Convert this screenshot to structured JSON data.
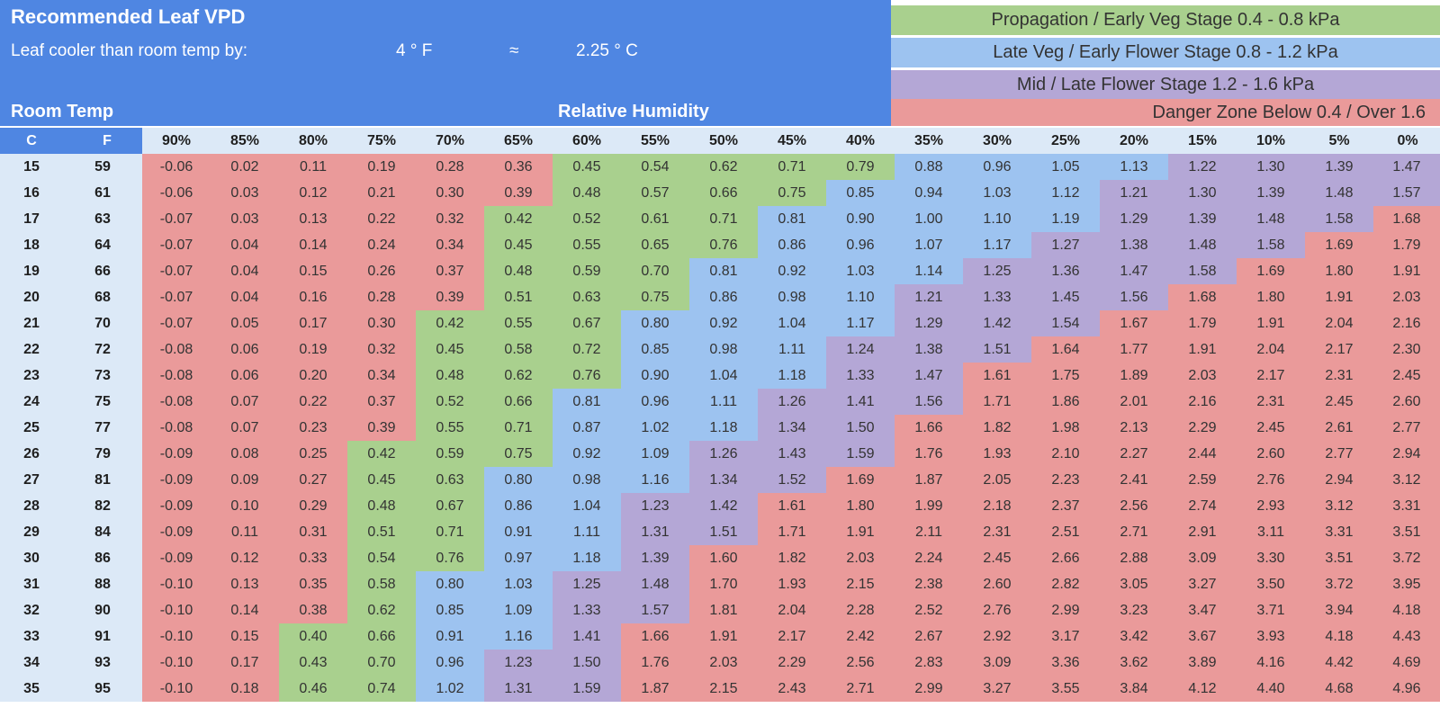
{
  "title": "Recommended Leaf VPD",
  "leaf_cooler": {
    "label": "Leaf cooler than room temp by:",
    "fahrenheit": "4 ° F",
    "approx": "≈",
    "celsius": "2.25 ° C"
  },
  "room_temp_label": "Room Temp",
  "rh_label": "Relative Humidity",
  "legend": [
    {
      "text": "Propagation / Early Veg Stage 0.4 - 0.8 kPa",
      "color": "#a9d08e"
    },
    {
      "text": "Late Veg / Early Flower Stage 0.8 - 1.2 kPa",
      "color": "#9dc3f0"
    },
    {
      "text": "Mid / Late Flower Stage 1.2 - 1.6 kPa",
      "color": "#b4a7d6"
    },
    {
      "text": "Danger Zone   Below 0.4 / Over 1.6",
      "color": "#ea9a9a"
    }
  ],
  "colors": {
    "header_blue": "#4f86e2",
    "header_light": "#dce9f7",
    "danger": "#ea9a9a",
    "green": "#a9d08e",
    "blue": "#9dc3f0",
    "purple": "#b4a7d6"
  },
  "chart_data": {
    "type": "table",
    "title": "Recommended Leaf VPD",
    "xlabel": "Relative Humidity",
    "ylabel": "Room Temp",
    "temp_headers": [
      "C",
      "F"
    ],
    "columns": [
      "90%",
      "85%",
      "80%",
      "75%",
      "70%",
      "65%",
      "60%",
      "55%",
      "50%",
      "45%",
      "40%",
      "35%",
      "30%",
      "25%",
      "20%",
      "15%",
      "10%",
      "5%",
      "0%"
    ],
    "rows": [
      {
        "c": "15",
        "f": "59",
        "values": [
          "-0.06",
          "0.02",
          "0.11",
          "0.19",
          "0.28",
          "0.36",
          "0.45",
          "0.54",
          "0.62",
          "0.71",
          "0.79",
          "0.88",
          "0.96",
          "1.05",
          "1.13",
          "1.22",
          "1.30",
          "1.39",
          "1.47"
        ]
      },
      {
        "c": "16",
        "f": "61",
        "values": [
          "-0.06",
          "0.03",
          "0.12",
          "0.21",
          "0.30",
          "0.39",
          "0.48",
          "0.57",
          "0.66",
          "0.75",
          "0.85",
          "0.94",
          "1.03",
          "1.12",
          "1.21",
          "1.30",
          "1.39",
          "1.48",
          "1.57"
        ]
      },
      {
        "c": "17",
        "f": "63",
        "values": [
          "-0.07",
          "0.03",
          "0.13",
          "0.22",
          "0.32",
          "0.42",
          "0.52",
          "0.61",
          "0.71",
          "0.81",
          "0.90",
          "1.00",
          "1.10",
          "1.19",
          "1.29",
          "1.39",
          "1.48",
          "1.58",
          "1.68"
        ]
      },
      {
        "c": "18",
        "f": "64",
        "values": [
          "-0.07",
          "0.04",
          "0.14",
          "0.24",
          "0.34",
          "0.45",
          "0.55",
          "0.65",
          "0.76",
          "0.86",
          "0.96",
          "1.07",
          "1.17",
          "1.27",
          "1.38",
          "1.48",
          "1.58",
          "1.69",
          "1.79"
        ]
      },
      {
        "c": "19",
        "f": "66",
        "values": [
          "-0.07",
          "0.04",
          "0.15",
          "0.26",
          "0.37",
          "0.48",
          "0.59",
          "0.70",
          "0.81",
          "0.92",
          "1.03",
          "1.14",
          "1.25",
          "1.36",
          "1.47",
          "1.58",
          "1.69",
          "1.80",
          "1.91"
        ]
      },
      {
        "c": "20",
        "f": "68",
        "values": [
          "-0.07",
          "0.04",
          "0.16",
          "0.28",
          "0.39",
          "0.51",
          "0.63",
          "0.75",
          "0.86",
          "0.98",
          "1.10",
          "1.21",
          "1.33",
          "1.45",
          "1.56",
          "1.68",
          "1.80",
          "1.91",
          "2.03"
        ]
      },
      {
        "c": "21",
        "f": "70",
        "values": [
          "-0.07",
          "0.05",
          "0.17",
          "0.30",
          "0.42",
          "0.55",
          "0.67",
          "0.80",
          "0.92",
          "1.04",
          "1.17",
          "1.29",
          "1.42",
          "1.54",
          "1.67",
          "1.79",
          "1.91",
          "2.04",
          "2.16"
        ]
      },
      {
        "c": "22",
        "f": "72",
        "values": [
          "-0.08",
          "0.06",
          "0.19",
          "0.32",
          "0.45",
          "0.58",
          "0.72",
          "0.85",
          "0.98",
          "1.11",
          "1.24",
          "1.38",
          "1.51",
          "1.64",
          "1.77",
          "1.91",
          "2.04",
          "2.17",
          "2.30"
        ]
      },
      {
        "c": "23",
        "f": "73",
        "values": [
          "-0.08",
          "0.06",
          "0.20",
          "0.34",
          "0.48",
          "0.62",
          "0.76",
          "0.90",
          "1.04",
          "1.18",
          "1.33",
          "1.47",
          "1.61",
          "1.75",
          "1.89",
          "2.03",
          "2.17",
          "2.31",
          "2.45"
        ]
      },
      {
        "c": "24",
        "f": "75",
        "values": [
          "-0.08",
          "0.07",
          "0.22",
          "0.37",
          "0.52",
          "0.66",
          "0.81",
          "0.96",
          "1.11",
          "1.26",
          "1.41",
          "1.56",
          "1.71",
          "1.86",
          "2.01",
          "2.16",
          "2.31",
          "2.45",
          "2.60"
        ]
      },
      {
        "c": "25",
        "f": "77",
        "values": [
          "-0.08",
          "0.07",
          "0.23",
          "0.39",
          "0.55",
          "0.71",
          "0.87",
          "1.02",
          "1.18",
          "1.34",
          "1.50",
          "1.66",
          "1.82",
          "1.98",
          "2.13",
          "2.29",
          "2.45",
          "2.61",
          "2.77"
        ]
      },
      {
        "c": "26",
        "f": "79",
        "values": [
          "-0.09",
          "0.08",
          "0.25",
          "0.42",
          "0.59",
          "0.75",
          "0.92",
          "1.09",
          "1.26",
          "1.43",
          "1.59",
          "1.76",
          "1.93",
          "2.10",
          "2.27",
          "2.44",
          "2.60",
          "2.77",
          "2.94"
        ]
      },
      {
        "c": "27",
        "f": "81",
        "values": [
          "-0.09",
          "0.09",
          "0.27",
          "0.45",
          "0.63",
          "0.80",
          "0.98",
          "1.16",
          "1.34",
          "1.52",
          "1.69",
          "1.87",
          "2.05",
          "2.23",
          "2.41",
          "2.59",
          "2.76",
          "2.94",
          "3.12"
        ]
      },
      {
        "c": "28",
        "f": "82",
        "values": [
          "-0.09",
          "0.10",
          "0.29",
          "0.48",
          "0.67",
          "0.86",
          "1.04",
          "1.23",
          "1.42",
          "1.61",
          "1.80",
          "1.99",
          "2.18",
          "2.37",
          "2.56",
          "2.74",
          "2.93",
          "3.12",
          "3.31"
        ]
      },
      {
        "c": "29",
        "f": "84",
        "values": [
          "-0.09",
          "0.11",
          "0.31",
          "0.51",
          "0.71",
          "0.91",
          "1.11",
          "1.31",
          "1.51",
          "1.71",
          "1.91",
          "2.11",
          "2.31",
          "2.51",
          "2.71",
          "2.91",
          "3.11",
          "3.31",
          "3.51"
        ]
      },
      {
        "c": "30",
        "f": "86",
        "values": [
          "-0.09",
          "0.12",
          "0.33",
          "0.54",
          "0.76",
          "0.97",
          "1.18",
          "1.39",
          "1.60",
          "1.82",
          "2.03",
          "2.24",
          "2.45",
          "2.66",
          "2.88",
          "3.09",
          "3.30",
          "3.51",
          "3.72"
        ]
      },
      {
        "c": "31",
        "f": "88",
        "values": [
          "-0.10",
          "0.13",
          "0.35",
          "0.58",
          "0.80",
          "1.03",
          "1.25",
          "1.48",
          "1.70",
          "1.93",
          "2.15",
          "2.38",
          "2.60",
          "2.82",
          "3.05",
          "3.27",
          "3.50",
          "3.72",
          "3.95"
        ]
      },
      {
        "c": "32",
        "f": "90",
        "values": [
          "-0.10",
          "0.14",
          "0.38",
          "0.62",
          "0.85",
          "1.09",
          "1.33",
          "1.57",
          "1.81",
          "2.04",
          "2.28",
          "2.52",
          "2.76",
          "2.99",
          "3.23",
          "3.47",
          "3.71",
          "3.94",
          "4.18"
        ]
      },
      {
        "c": "33",
        "f": "91",
        "values": [
          "-0.10",
          "0.15",
          "0.40",
          "0.66",
          "0.91",
          "1.16",
          "1.41",
          "1.66",
          "1.91",
          "2.17",
          "2.42",
          "2.67",
          "2.92",
          "3.17",
          "3.42",
          "3.67",
          "3.93",
          "4.18",
          "4.43"
        ]
      },
      {
        "c": "34",
        "f": "93",
        "values": [
          "-0.10",
          "0.17",
          "0.43",
          "0.70",
          "0.96",
          "1.23",
          "1.50",
          "1.76",
          "2.03",
          "2.29",
          "2.56",
          "2.83",
          "3.09",
          "3.36",
          "3.62",
          "3.89",
          "4.16",
          "4.42",
          "4.69"
        ]
      },
      {
        "c": "35",
        "f": "95",
        "values": [
          "-0.10",
          "0.18",
          "0.46",
          "0.74",
          "1.02",
          "1.31",
          "1.59",
          "1.87",
          "2.15",
          "2.43",
          "2.71",
          "2.99",
          "3.27",
          "3.55",
          "3.84",
          "4.12",
          "4.40",
          "4.68",
          "4.96"
        ]
      }
    ]
  }
}
